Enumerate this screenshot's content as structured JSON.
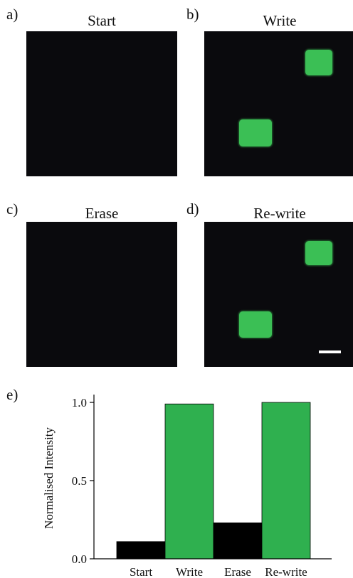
{
  "colors": {
    "panel_background": "#0a0a0d",
    "spot": "#3bbf55",
    "bar_dark": "#000000",
    "bar_green": "#2fb04f",
    "scale_bar": "#ffffff"
  },
  "panels": [
    {
      "id": "a",
      "label": "a)",
      "title": "Start",
      "spots": []
    },
    {
      "id": "b",
      "label": "b)",
      "title": "Write",
      "spots": [
        "upper-right",
        "lower-left"
      ]
    },
    {
      "id": "c",
      "label": "c)",
      "title": "Erase",
      "spots": []
    },
    {
      "id": "d",
      "label": "d)",
      "title": "Re-write",
      "spots": [
        "upper-right",
        "lower-left"
      ],
      "scale_bar": true
    }
  ],
  "chart_label": "e)",
  "chart_data": {
    "type": "bar",
    "categories": [
      "Start",
      "Write",
      "Erase",
      "Re-write"
    ],
    "values": [
      0.11,
      0.99,
      0.23,
      1.0
    ],
    "bar_colors": [
      "#000000",
      "#2fb04f",
      "#000000",
      "#2fb04f"
    ],
    "title": "",
    "xlabel": "",
    "ylabel": "Normalised Intensity",
    "ylim": [
      0,
      1.05
    ],
    "yticks": [
      0.0,
      0.5,
      1.0
    ],
    "ytick_labels": [
      "0.0",
      "0.5",
      "1.0"
    ],
    "grid": false
  }
}
